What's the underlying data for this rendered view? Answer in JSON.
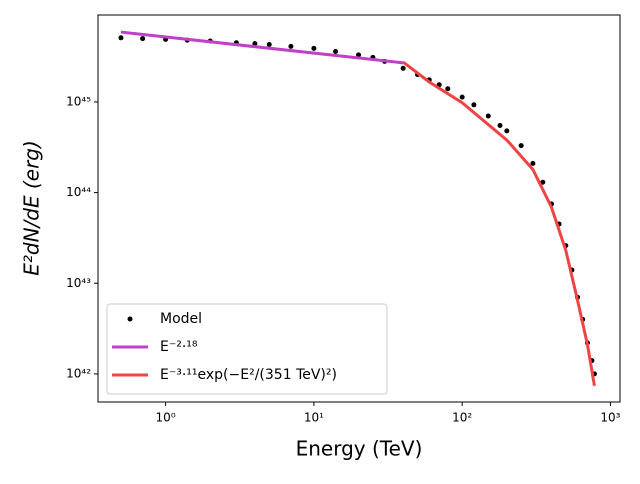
{
  "chart_data": {
    "type": "line",
    "xlabel": "Energy (TeV)",
    "ylabel": "E²dN/dE (erg)",
    "xscale": "log",
    "yscale": "log",
    "xlim": [
      0.35,
      1160
    ],
    "ylim": [
      4.9e+41,
      9.1e+45
    ],
    "xticks": [
      {
        "value": 1,
        "label": "10⁰"
      },
      {
        "value": 10,
        "label": "10¹"
      },
      {
        "value": 100,
        "label": "10²"
      },
      {
        "value": 1000,
        "label": "10³"
      }
    ],
    "yticks": [
      {
        "value": 1e+42,
        "label": "10⁴²"
      },
      {
        "value": 1e+43,
        "label": "10⁴³"
      },
      {
        "value": 1e+44,
        "label": "10⁴⁴"
      },
      {
        "value": 1e+45,
        "label": "10⁴⁵"
      }
    ],
    "grid": false,
    "legend": "lower left",
    "series": [
      {
        "name": "Model",
        "color": "#000000",
        "mode": "markers",
        "x": [
          0.5,
          0.7,
          1,
          1.4,
          2,
          3,
          4,
          5,
          7,
          10,
          14,
          20,
          25,
          30,
          40,
          50,
          60,
          70,
          80,
          100,
          120,
          150,
          180,
          200,
          250,
          300,
          350,
          400,
          450,
          500,
          550,
          600,
          650,
          700,
          750,
          780
        ],
        "values": [
          5.1e+45,
          5e+45,
          4.9e+45,
          4.8e+45,
          4.7e+45,
          4.5e+45,
          4.4e+45,
          4.3e+45,
          4.1e+45,
          3.9e+45,
          3.6e+45,
          3.3e+45,
          3.1e+45,
          2.8e+45,
          2.35e+45,
          2e+45,
          1.75e+45,
          1.55e+45,
          1.4e+45,
          1.13e+45,
          9.3e+44,
          7e+44,
          5.5e+44,
          4.8e+44,
          3.3e+44,
          2.1e+44,
          1.3e+44,
          7.5e+43,
          4.5e+43,
          2.6e+43,
          1.4e+43,
          7e+42,
          4e+42,
          2.2e+42,
          1.4e+42,
          1e+42
        ]
      },
      {
        "name": "E⁻²·¹⁸",
        "color": "#c040c8",
        "mode": "lines",
        "x": [
          0.5,
          40
        ],
        "values": [
          5.9e+45,
          2.7e+45
        ]
      },
      {
        "name": "E⁻³·¹¹exp(−E²/(351 TeV)²)",
        "color": "#f04444",
        "mode": "lines",
        "x": [
          40,
          60,
          100,
          200,
          300,
          400,
          500,
          600,
          700,
          780
        ],
        "values": [
          2.75e+45,
          1.66e+45,
          9.8e+44,
          3.8e+44,
          1.8e+44,
          6.9e+43,
          2.3e+43,
          6.5e+42,
          2.1e+42,
          7.4e+41
        ]
      }
    ]
  }
}
